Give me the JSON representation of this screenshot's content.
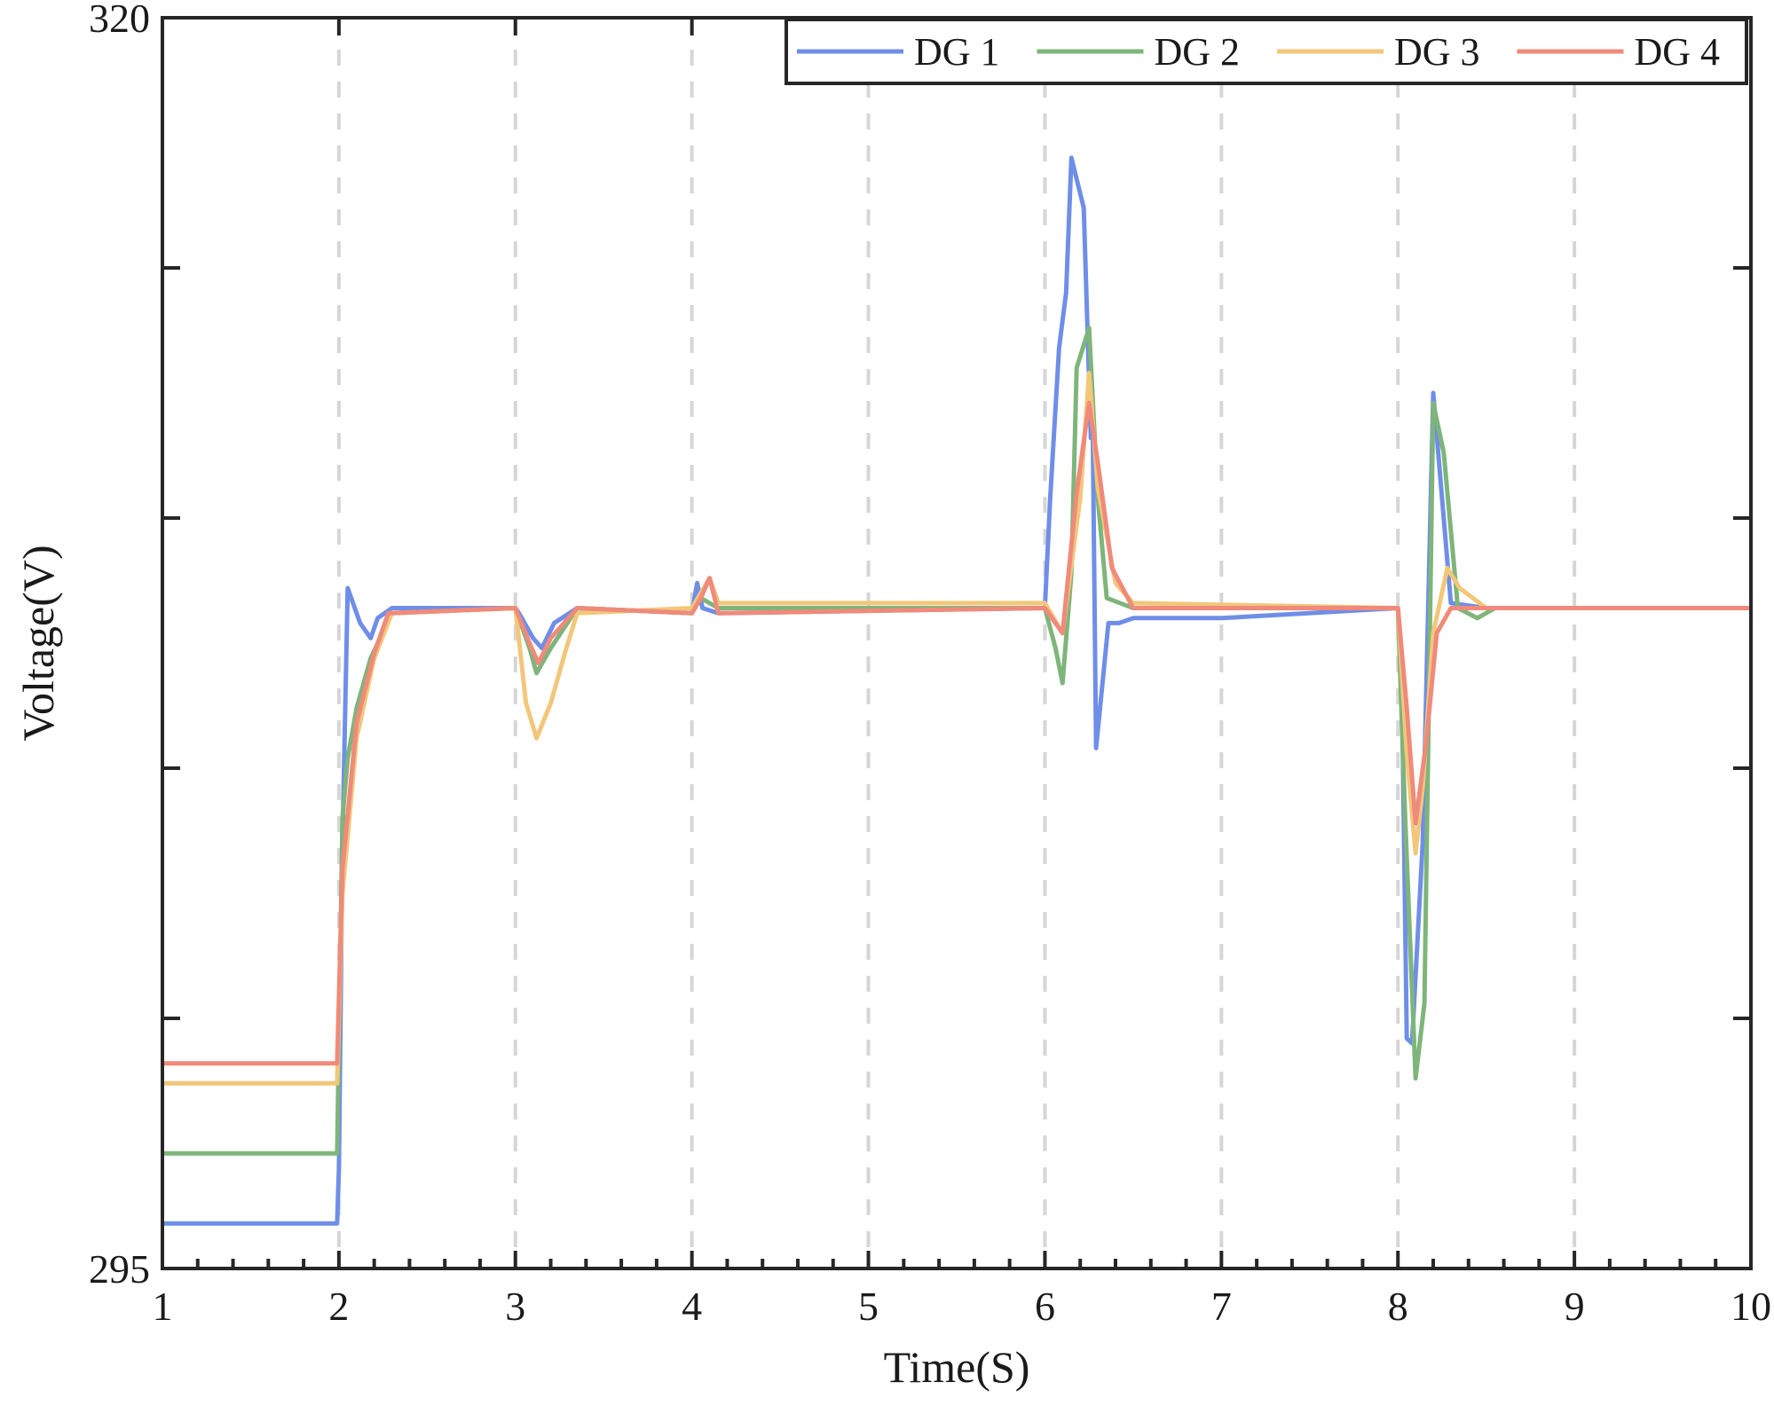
{
  "chart_data": {
    "type": "line",
    "title": "",
    "xlabel": "Time(S)",
    "ylabel": "Voltage(V)",
    "xlim": [
      1,
      10
    ],
    "ylim": [
      295,
      320
    ],
    "x_ticks": [
      1,
      2,
      3,
      4,
      5,
      6,
      7,
      8,
      9,
      10
    ],
    "x_tick_labels": [
      "1",
      "2",
      "3",
      "4",
      "5",
      "6",
      "7",
      "8",
      "9",
      "10"
    ],
    "y_ticks": [
      295,
      300,
      305,
      310,
      315,
      320
    ],
    "y_tick_labels": [
      "295",
      "",
      "",
      "",
      "",
      "320"
    ],
    "grid": "vertical dashed at integer x",
    "legend": {
      "position": "top-right",
      "orientation": "horizontal"
    },
    "series": [
      {
        "name": "DG 1",
        "color": "#6f8ee8",
        "points": [
          [
            1.0,
            295.9
          ],
          [
            1.99,
            295.9
          ],
          [
            2.0,
            297.0
          ],
          [
            2.02,
            303.5
          ],
          [
            2.05,
            308.6
          ],
          [
            2.08,
            308.3
          ],
          [
            2.12,
            307.9
          ],
          [
            2.18,
            307.6
          ],
          [
            2.22,
            308.0
          ],
          [
            2.3,
            308.2
          ],
          [
            3.0,
            308.2
          ],
          [
            3.02,
            308.1
          ],
          [
            3.1,
            307.6
          ],
          [
            3.15,
            307.4
          ],
          [
            3.22,
            307.9
          ],
          [
            3.35,
            308.2
          ],
          [
            4.0,
            308.1
          ],
          [
            4.03,
            308.7
          ],
          [
            4.06,
            308.2
          ],
          [
            4.15,
            308.1
          ],
          [
            6.0,
            308.2
          ],
          [
            6.03,
            310.4
          ],
          [
            6.08,
            313.4
          ],
          [
            6.12,
            314.5
          ],
          [
            6.15,
            317.2
          ],
          [
            6.22,
            316.2
          ],
          [
            6.26,
            311.6
          ],
          [
            6.27,
            312.2
          ],
          [
            6.29,
            305.4
          ],
          [
            6.36,
            307.9
          ],
          [
            6.42,
            307.9
          ],
          [
            6.5,
            308.0
          ],
          [
            7.0,
            308.0
          ],
          [
            8.0,
            308.2
          ],
          [
            8.02,
            307.3
          ],
          [
            8.05,
            299.6
          ],
          [
            8.08,
            299.5
          ],
          [
            8.14,
            303.5
          ],
          [
            8.2,
            312.5
          ],
          [
            8.25,
            310.4
          ],
          [
            8.3,
            308.3
          ],
          [
            8.5,
            308.2
          ],
          [
            10.0,
            308.2
          ]
        ]
      },
      {
        "name": "DG 2",
        "color": "#7eb57a",
        "points": [
          [
            1.0,
            297.3
          ],
          [
            1.99,
            297.3
          ],
          [
            2.02,
            304.0
          ],
          [
            2.05,
            305.2
          ],
          [
            2.1,
            306.2
          ],
          [
            2.18,
            307.2
          ],
          [
            2.3,
            308.1
          ],
          [
            3.0,
            308.2
          ],
          [
            3.08,
            307.4
          ],
          [
            3.12,
            306.9
          ],
          [
            3.2,
            307.4
          ],
          [
            3.35,
            308.2
          ],
          [
            4.0,
            308.1
          ],
          [
            4.05,
            308.4
          ],
          [
            4.1,
            308.3
          ],
          [
            4.15,
            308.2
          ],
          [
            6.0,
            308.2
          ],
          [
            6.06,
            307.4
          ],
          [
            6.1,
            306.7
          ],
          [
            6.15,
            308.9
          ],
          [
            6.18,
            313.0
          ],
          [
            6.25,
            313.8
          ],
          [
            6.3,
            310.4
          ],
          [
            6.35,
            308.4
          ],
          [
            6.5,
            308.2
          ],
          [
            8.0,
            308.2
          ],
          [
            8.04,
            304.1
          ],
          [
            8.1,
            298.8
          ],
          [
            8.15,
            300.3
          ],
          [
            8.2,
            312.3
          ],
          [
            8.26,
            311.3
          ],
          [
            8.34,
            308.2
          ],
          [
            8.45,
            308.0
          ],
          [
            8.55,
            308.2
          ],
          [
            10.0,
            308.2
          ]
        ]
      },
      {
        "name": "DG 3",
        "color": "#f2c77a",
        "points": [
          [
            1.0,
            298.7
          ],
          [
            1.99,
            298.7
          ],
          [
            2.02,
            302.5
          ],
          [
            2.1,
            305.6
          ],
          [
            2.2,
            307.2
          ],
          [
            2.3,
            308.1
          ],
          [
            3.0,
            308.2
          ],
          [
            3.06,
            306.3
          ],
          [
            3.12,
            305.6
          ],
          [
            3.2,
            306.3
          ],
          [
            3.28,
            307.3
          ],
          [
            3.35,
            308.1
          ],
          [
            4.0,
            308.2
          ],
          [
            4.05,
            308.5
          ],
          [
            4.1,
            308.8
          ],
          [
            4.15,
            308.3
          ],
          [
            6.0,
            308.3
          ],
          [
            6.1,
            307.7
          ],
          [
            6.2,
            310.4
          ],
          [
            6.25,
            312.9
          ],
          [
            6.3,
            310.6
          ],
          [
            6.4,
            308.7
          ],
          [
            6.5,
            308.3
          ],
          [
            8.0,
            308.2
          ],
          [
            8.05,
            305.3
          ],
          [
            8.1,
            303.3
          ],
          [
            8.14,
            304.6
          ],
          [
            8.2,
            307.7
          ],
          [
            8.28,
            309.0
          ],
          [
            8.35,
            308.6
          ],
          [
            8.5,
            308.2
          ],
          [
            10.0,
            308.2
          ]
        ]
      },
      {
        "name": "DG 4",
        "color": "#f08a7a",
        "points": [
          [
            1.0,
            299.1
          ],
          [
            1.99,
            299.1
          ],
          [
            2.02,
            303.0
          ],
          [
            2.1,
            305.9
          ],
          [
            2.2,
            307.3
          ],
          [
            2.28,
            308.1
          ],
          [
            3.0,
            308.2
          ],
          [
            3.08,
            307.5
          ],
          [
            3.13,
            307.1
          ],
          [
            3.2,
            307.6
          ],
          [
            3.35,
            308.2
          ],
          [
            4.0,
            308.1
          ],
          [
            4.05,
            308.4
          ],
          [
            4.1,
            308.8
          ],
          [
            4.15,
            308.1
          ],
          [
            6.0,
            308.2
          ],
          [
            6.1,
            307.7
          ],
          [
            6.18,
            310.5
          ],
          [
            6.25,
            312.3
          ],
          [
            6.3,
            311.1
          ],
          [
            6.38,
            309.0
          ],
          [
            6.5,
            308.2
          ],
          [
            8.0,
            308.2
          ],
          [
            8.05,
            306.2
          ],
          [
            8.1,
            303.9
          ],
          [
            8.16,
            305.5
          ],
          [
            8.22,
            307.7
          ],
          [
            8.3,
            308.2
          ],
          [
            10.0,
            308.2
          ]
        ]
      }
    ]
  }
}
